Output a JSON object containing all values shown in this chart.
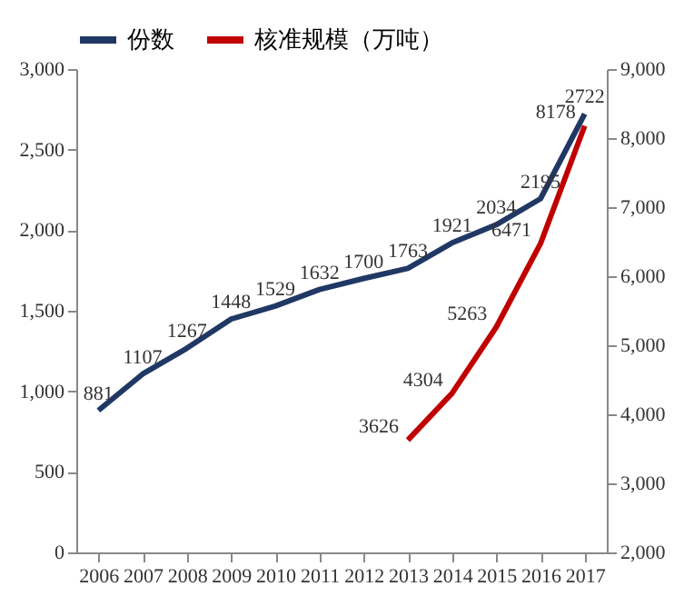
{
  "chart_data": {
    "type": "line",
    "categories": [
      "2006",
      "2007",
      "2008",
      "2009",
      "2010",
      "2011",
      "2012",
      "2013",
      "2014",
      "2015",
      "2016",
      "2017"
    ],
    "series": [
      {
        "name": "份数",
        "color": "#203864",
        "values": [
          881,
          1107,
          1267,
          1448,
          1529,
          1632,
          1700,
          1763,
          1921,
          2034,
          2195,
          2722
        ]
      },
      {
        "name": "核准规模（万吨）",
        "color": "#c00000",
        "axis": "y2",
        "values": [
          null,
          null,
          null,
          null,
          null,
          null,
          null,
          3626,
          4304,
          5263,
          6471,
          8178
        ]
      }
    ],
    "ylim": [
      0,
      3000
    ],
    "yticks": [
      0,
      500,
      {
        "value": 1000,
        "label": "1,000"
      },
      {
        "value": 1500,
        "label": "1,500"
      },
      {
        "value": 2000,
        "label": "2,000"
      },
      {
        "value": 2500,
        "label": "2,500"
      },
      {
        "value": 3000,
        "label": "3,000"
      }
    ],
    "y2lim": [
      2000,
      9000
    ],
    "y2ticks": [
      {
        "value": 2000,
        "label": "2,000"
      },
      {
        "value": 3000,
        "label": "3,000"
      },
      {
        "value": 4000,
        "label": "4,000"
      },
      {
        "value": 5000,
        "label": "5,000"
      },
      {
        "value": 6000,
        "label": "6,000"
      },
      {
        "value": 7000,
        "label": "7,000"
      },
      {
        "value": 8000,
        "label": "8,000"
      },
      {
        "value": 9000,
        "label": "9,000"
      }
    ],
    "data_labels": true,
    "legend": "top",
    "grid": false,
    "marker": "none",
    "line_style": "solid"
  }
}
